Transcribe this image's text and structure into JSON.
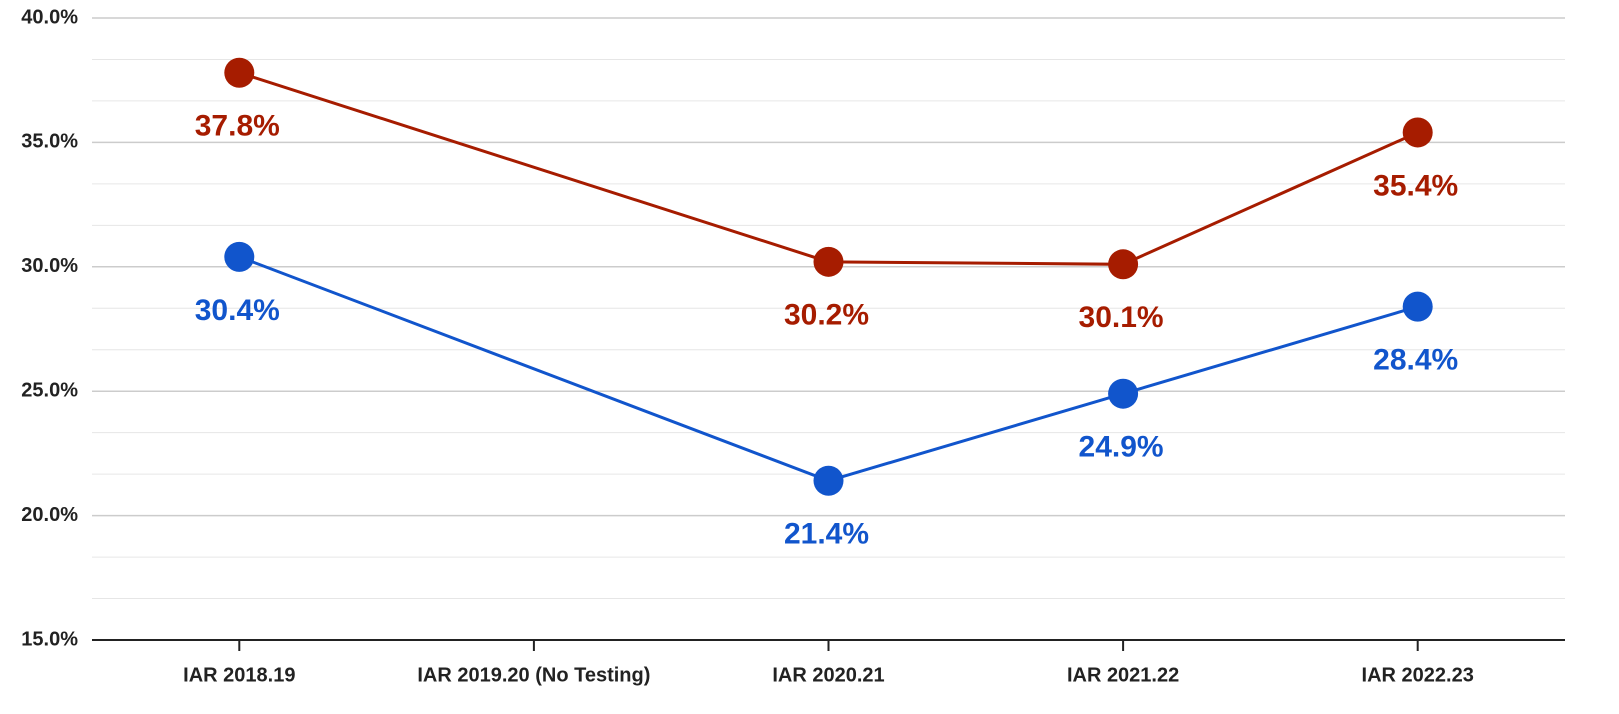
{
  "chart_data": {
    "type": "line",
    "categories": [
      "IAR 2018.19",
      "IAR 2019.20 (No Testing)",
      "IAR 2020.21",
      "IAR 2021.22",
      "IAR  2022.23"
    ],
    "series": [
      {
        "color": "#a61c00",
        "values": [
          37.8,
          null,
          30.2,
          30.1,
          35.4
        ],
        "value_labels": [
          "37.8%",
          null,
          "30.2%",
          "30.1%",
          "35.4%"
        ]
      },
      {
        "color": "#1155cc",
        "values": [
          30.4,
          null,
          21.4,
          24.9,
          28.4
        ],
        "value_labels": [
          "30.4%",
          null,
          "21.4%",
          "24.9%",
          "28.4%"
        ]
      }
    ],
    "span_gaps": true,
    "ylim": [
      15,
      40
    ],
    "yticks": [
      {
        "value": 15,
        "label": "15.0%"
      },
      {
        "value": 20,
        "label": "20.0%"
      },
      {
        "value": 25,
        "label": "25.0%"
      },
      {
        "value": 30,
        "label": "30.0%"
      },
      {
        "value": 35,
        "label": "35.0%"
      },
      {
        "value": 40,
        "label": "40.0%"
      }
    ],
    "grid": true
  }
}
